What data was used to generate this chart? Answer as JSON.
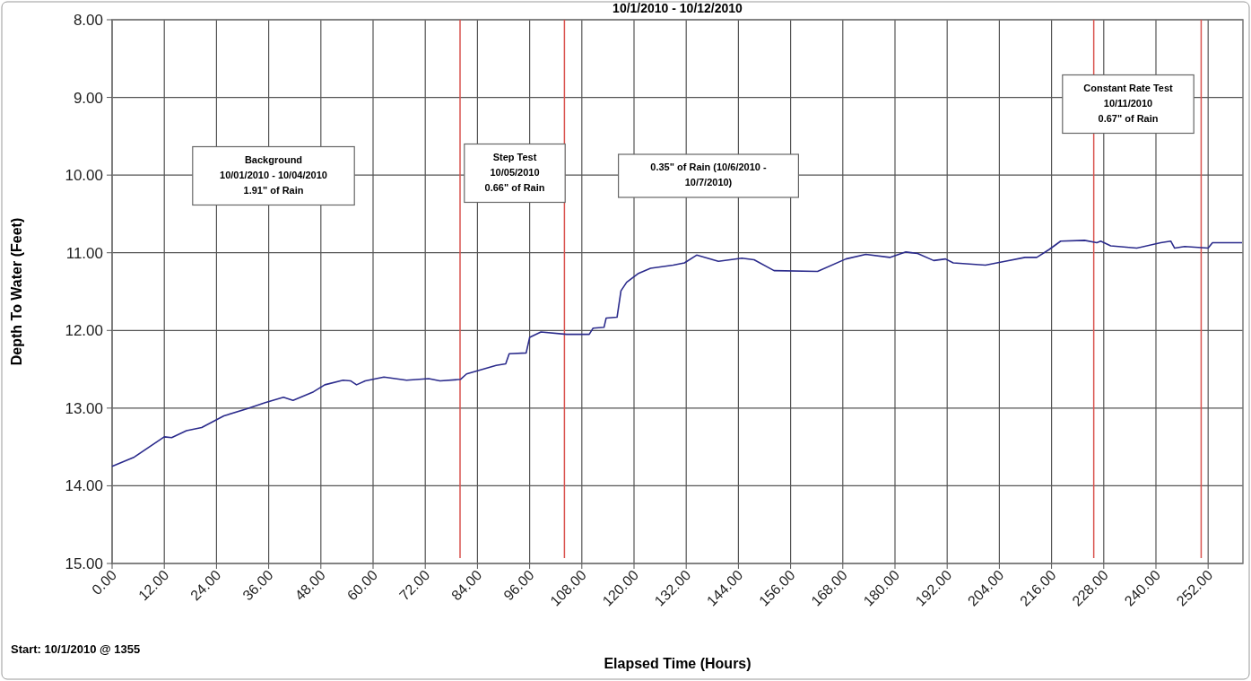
{
  "chart_data": {
    "type": "line",
    "title": "10/1/2010 - 10/12/2010",
    "xlabel": "Elapsed Time (Hours)",
    "ylabel": "Depth To Water (Feet)",
    "xlim": [
      0,
      260
    ],
    "ylim": [
      15,
      8
    ],
    "xticks": [
      {
        "value": 0,
        "label": "0.00"
      },
      {
        "value": 12,
        "label": "12.00"
      },
      {
        "value": 24,
        "label": "24.00"
      },
      {
        "value": 36,
        "label": "36.00"
      },
      {
        "value": 48,
        "label": "48.00"
      },
      {
        "value": 60,
        "label": "60.00"
      },
      {
        "value": 72,
        "label": "72.00"
      },
      {
        "value": 84,
        "label": "84.00"
      },
      {
        "value": 96,
        "label": "96.00"
      },
      {
        "value": 108,
        "label": "108.00"
      },
      {
        "value": 120,
        "label": "120.00"
      },
      {
        "value": 132,
        "label": "132.00"
      },
      {
        "value": 144,
        "label": "144.00"
      },
      {
        "value": 156,
        "label": "156.00"
      },
      {
        "value": 168,
        "label": "168.00"
      },
      {
        "value": 180,
        "label": "180.00"
      },
      {
        "value": 192,
        "label": "192.00"
      },
      {
        "value": 204,
        "label": "204.00"
      },
      {
        "value": 216,
        "label": "216.00"
      },
      {
        "value": 228,
        "label": "228.00"
      },
      {
        "value": 240,
        "label": "240.00"
      },
      {
        "value": 252,
        "label": "252.00"
      }
    ],
    "yticks": [
      {
        "value": 8,
        "label": "8.00"
      },
      {
        "value": 9,
        "label": "9.00"
      },
      {
        "value": 10,
        "label": "10.00"
      },
      {
        "value": 11,
        "label": "11.00"
      },
      {
        "value": 12,
        "label": "12.00"
      },
      {
        "value": 13,
        "label": "13.00"
      },
      {
        "value": 14,
        "label": "14.00"
      },
      {
        "value": 15,
        "label": "15.00"
      }
    ],
    "grid": true,
    "marker": "none",
    "line_style": "solid",
    "series": [
      {
        "color": "#2b2b8c",
        "x": [
          0,
          5.1,
          12,
          13.7,
          17.1,
          20.6,
          25.7,
          30.9,
          35.2,
          39.4,
          41.6,
          46.3,
          48.9,
          53.1,
          54.9,
          56.2,
          58.2,
          62.5,
          67.7,
          72.8,
          75.4,
          80.1,
          81.5,
          84,
          88.3,
          90.5,
          91.3,
          95.2,
          96,
          98.6,
          104.5,
          109.7,
          110.6,
          113.1,
          113.6,
          116.1,
          117,
          118.3,
          120.9,
          123.8,
          129,
          131.6,
          134.4,
          139.4,
          144.8,
          147.6,
          152.2,
          162.2,
          168.7,
          173.3,
          178.8,
          182.5,
          185.2,
          188.9,
          191.6,
          193.4,
          200.8,
          205.3,
          209.9,
          212.6,
          215.4,
          218.1,
          223.6,
          226.4,
          227.3,
          229.6,
          235.6,
          241.1,
          243.4,
          244.3,
          246.6,
          252,
          253,
          259.8
        ],
        "values": [
          13.75,
          13.63,
          13.37,
          13.38,
          13.29,
          13.25,
          13.1,
          13.01,
          12.93,
          12.86,
          12.9,
          12.79,
          12.7,
          12.64,
          12.65,
          12.7,
          12.65,
          12.6,
          12.64,
          12.62,
          12.65,
          12.63,
          12.56,
          12.52,
          12.45,
          12.43,
          12.3,
          12.29,
          12.09,
          12.02,
          12.05,
          12.05,
          11.97,
          11.96,
          11.84,
          11.83,
          11.49,
          11.38,
          11.27,
          11.2,
          11.16,
          11.13,
          11.03,
          11.11,
          11.07,
          11.09,
          11.23,
          11.24,
          11.08,
          11.02,
          11.06,
          10.99,
          11.01,
          11.1,
          11.08,
          11.13,
          11.16,
          11.11,
          11.06,
          11.06,
          10.96,
          10.85,
          10.84,
          10.87,
          10.85,
          10.91,
          10.94,
          10.87,
          10.85,
          10.94,
          10.92,
          10.94,
          10.87,
          10.87
        ]
      }
    ],
    "ref_lines": [
      {
        "axis": "x",
        "value": 80,
        "color": "#d9534f"
      },
      {
        "axis": "x",
        "value": 104,
        "color": "#d9534f"
      },
      {
        "axis": "x",
        "value": 225.7,
        "color": "#d9534f"
      },
      {
        "axis": "x",
        "value": 250.4,
        "color": "#d9534f"
      }
    ],
    "annotations": [
      "Background\n10/01/2010 - 10/04/2010\n1.91\" of Rain",
      "Step Test\n10/05/2010\n0.66\" of Rain",
      "0.35\" of Rain (10/6/2010 -\n10/7/2010)",
      "Constant Rate Test\n10/11/2010\n0.67\" of Rain",
      "Start: 10/1/2010 @ 1355"
    ]
  }
}
